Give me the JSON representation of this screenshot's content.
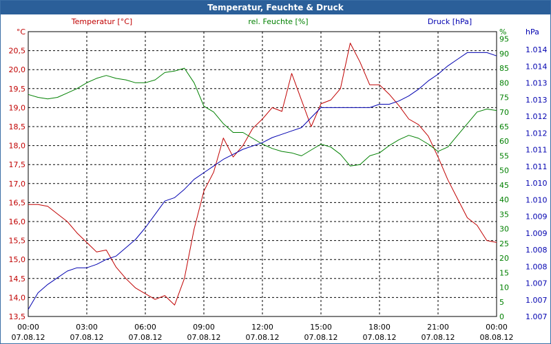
{
  "window": {
    "title": "Temperatur, Feuchte & Druck"
  },
  "colors": {
    "temp": "#c00000",
    "hum": "#008000",
    "press": "#0000b0",
    "grid": "#000000",
    "text": "#000000",
    "title_bg": "#2b5f99"
  },
  "chart_data": {
    "type": "line",
    "title": "Temperatur, Feuchte & Druck",
    "x_ticks": [
      {
        "time": "00:00",
        "date": "07.08.12"
      },
      {
        "time": "03:00",
        "date": "07.08.12"
      },
      {
        "time": "06:00",
        "date": "07.08.12"
      },
      {
        "time": "09:00",
        "date": "07.08.12"
      },
      {
        "time": "12:00",
        "date": "07.08.12"
      },
      {
        "time": "15:00",
        "date": "07.08.12"
      },
      {
        "time": "18:00",
        "date": "07.08.12"
      },
      {
        "time": "21:00",
        "date": "07.08.12"
      },
      {
        "time": "00:00",
        "date": "08.08.12"
      }
    ],
    "xlim": [
      0,
      24
    ],
    "left_axis": {
      "label": "Temperatur [°C]",
      "unit": "°C",
      "ylim": [
        13.5,
        21.0
      ],
      "ticks": [
        "13,5",
        "14,0",
        "14,5",
        "15,0",
        "15,5",
        "16,0",
        "16,5",
        "17,0",
        "17,5",
        "18,0",
        "18,5",
        "19,0",
        "19,5",
        "20,0",
        "20,5"
      ]
    },
    "mid_axis": {
      "label": "rel. Feuchte [%]",
      "unit": "%",
      "ylim": [
        0,
        97.5
      ],
      "ticks": [
        "0",
        "5",
        "10",
        "15",
        "20",
        "25",
        "30",
        "35",
        "40",
        "45",
        "50",
        "55",
        "60",
        "65",
        "70",
        "75",
        "80",
        "85",
        "90",
        "95"
      ]
    },
    "right_axis": {
      "label": "Druck [hPa]",
      "unit": "hPa",
      "ticks": [
        "1.007",
        "1.007",
        "1.007",
        "1.008",
        "1.008",
        "1.009",
        "1.009",
        "1.010",
        "1.010",
        "1.011",
        "1.011",
        "1.012",
        "1.012",
        "1.013",
        "1.013",
        "1.014",
        "1.014"
      ]
    },
    "series": [
      {
        "name": "Temperatur",
        "axis": "left",
        "color": "#c00000",
        "x": [
          0,
          0.5,
          1,
          1.5,
          2,
          2.5,
          3,
          3.5,
          4,
          4.5,
          5,
          5.5,
          6,
          6.5,
          7,
          7.5,
          8,
          8.5,
          9,
          9.5,
          10,
          10.5,
          11,
          11.5,
          12,
          12.5,
          13,
          13.5,
          14,
          14.5,
          15,
          15.5,
          16,
          16.5,
          17,
          17.5,
          18,
          18.5,
          19,
          19.5,
          20,
          20.5,
          21,
          21.5,
          22,
          22.5,
          23,
          23.5,
          24
        ],
        "values": [
          16.45,
          16.45,
          16.4,
          16.2,
          16.0,
          15.7,
          15.45,
          15.2,
          15.25,
          14.8,
          14.5,
          14.25,
          14.1,
          13.95,
          14.05,
          13.8,
          14.5,
          15.8,
          16.8,
          17.3,
          18.2,
          17.7,
          18.0,
          18.45,
          18.7,
          19.0,
          18.9,
          19.9,
          19.2,
          18.5,
          19.1,
          19.2,
          19.5,
          20.7,
          20.2,
          19.6,
          19.6,
          19.35,
          19.05,
          18.7,
          18.55,
          18.25,
          17.7,
          17.1,
          16.6,
          16.1,
          15.9,
          15.5,
          15.45
        ]
      },
      {
        "name": "rel. Feuchte",
        "axis": "mid",
        "color": "#008000",
        "x": [
          0,
          0.5,
          1,
          1.5,
          2,
          2.5,
          3,
          3.5,
          4,
          4.5,
          5,
          5.5,
          6,
          6.5,
          7,
          7.5,
          8,
          8.5,
          9,
          9.5,
          10,
          10.5,
          11,
          11.5,
          12,
          12.5,
          13,
          13.5,
          14,
          14.5,
          15,
          15.5,
          16,
          16.5,
          17,
          17.5,
          18,
          18.5,
          19,
          19.5,
          20,
          20.5,
          21,
          21.5,
          22,
          22.5,
          23,
          23.5,
          24
        ],
        "values": [
          76,
          75,
          74.5,
          75,
          76.5,
          78,
          80,
          81.5,
          82.5,
          81.5,
          81,
          80,
          80,
          81,
          83.5,
          84,
          85,
          80,
          72,
          70,
          66,
          63,
          63,
          61,
          59,
          57.5,
          56.5,
          56,
          55,
          57,
          59,
          58,
          55.5,
          51.5,
          52,
          55,
          56,
          58.5,
          60.5,
          62,
          61,
          59,
          56.5,
          58,
          62,
          66,
          70,
          71,
          70.5
        ]
      },
      {
        "name": "Druck",
        "axis": "right",
        "color": "#0000b0",
        "x": [
          0,
          0.5,
          1,
          1.5,
          2,
          2.5,
          3,
          3.5,
          4,
          4.5,
          5,
          5.5,
          6,
          6.5,
          7,
          7.5,
          8,
          8.5,
          9,
          9.5,
          10,
          10.5,
          11,
          11.5,
          12,
          12.5,
          13,
          13.5,
          14,
          14.5,
          15,
          15.5,
          16,
          16.5,
          17,
          17.5,
          18,
          18.5,
          19,
          19.5,
          20,
          20.5,
          21,
          21.5,
          22,
          22.5,
          23,
          23.5,
          24
        ],
        "values": [
          1.00691,
          1.00741,
          1.00766,
          1.00786,
          1.00806,
          1.00816,
          1.00816,
          1.00826,
          1.00841,
          1.00851,
          1.00876,
          1.00901,
          1.00936,
          1.00976,
          1.01016,
          1.01026,
          1.01051,
          1.01081,
          1.01101,
          1.01121,
          1.01141,
          1.01156,
          1.01171,
          1.01181,
          1.01191,
          1.01206,
          1.01216,
          1.01226,
          1.01236,
          1.01266,
          1.01296,
          1.01296,
          1.01296,
          1.01296,
          1.01296,
          1.01296,
          1.01306,
          1.01306,
          1.01316,
          1.01331,
          1.01351,
          1.01376,
          1.01396,
          1.01421,
          1.01441,
          1.01461,
          1.01461,
          1.01461,
          1.01451
        ]
      }
    ]
  }
}
